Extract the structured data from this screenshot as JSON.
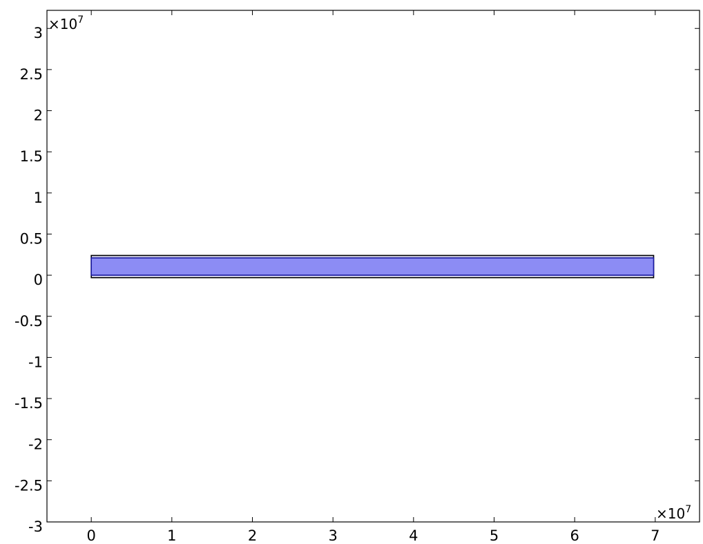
{
  "chart_data": {
    "type": "geometry-plot",
    "x_multiplier": "×10",
    "x_exponent": "7",
    "y_multiplier": "×10",
    "y_exponent": "7",
    "xlim": [
      -0.55,
      7.55
    ],
    "ylim": [
      -3.0,
      3.22
    ],
    "x_ticks": [
      0,
      1,
      2,
      3,
      4,
      5,
      6,
      7
    ],
    "x_tick_labels": [
      "0",
      "1",
      "2",
      "3",
      "4",
      "5",
      "6",
      "7"
    ],
    "y_ticks": [
      3,
      2.5,
      2,
      1.5,
      1,
      0.5,
      0,
      -0.5,
      -1,
      -1.5,
      -2,
      -2.5,
      -3
    ],
    "y_tick_labels": [
      "3",
      "2.5",
      "2",
      "1.5",
      "1",
      "0.5",
      "0",
      "-0.5",
      "-1",
      "-1.5",
      "-2",
      "-2.5",
      "-3"
    ],
    "rectangles": [
      {
        "name": "outer-layer",
        "x0": 0,
        "x1": 6.98,
        "y0": -0.03,
        "y1": 0.24,
        "fill": "#d8d8f0",
        "stroke": "#000000"
      },
      {
        "name": "inner-domain",
        "x0": 0,
        "x1": 6.98,
        "y0": 0.0,
        "y1": 0.21,
        "fill": "#8c8cf4",
        "stroke": "#1a1aa0"
      }
    ],
    "grid": false
  }
}
